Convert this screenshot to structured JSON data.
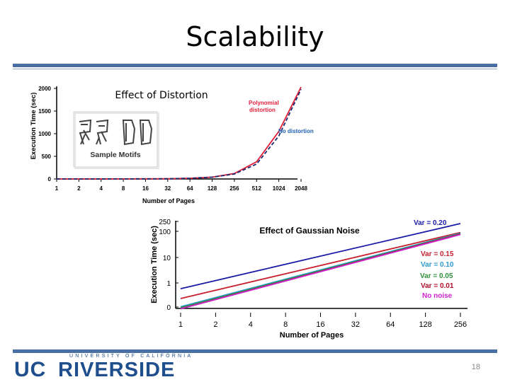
{
  "slide": {
    "title": "Scalability",
    "page_number": "18",
    "logo": {
      "uc": "UC",
      "riverside": "RIVERSIDE",
      "university": "UNIVERSITY OF CALIFORNIA"
    }
  },
  "colors": {
    "accent": "#4a6fa3",
    "logo": "#1f4e8c"
  },
  "chart_data": [
    {
      "type": "line",
      "title": "Effect of Distortion",
      "xlabel": "Number of Pages",
      "ylabel": "Execution Time (sec)",
      "x": [
        1,
        2,
        4,
        8,
        16,
        32,
        64,
        128,
        256,
        512,
        1024,
        2048
      ],
      "x_ticks": [
        "1",
        "2",
        "4",
        "8",
        "16",
        "32",
        "64",
        "128",
        "256",
        "512",
        "1024",
        "2048"
      ],
      "y_ticks": [
        "0",
        "500",
        "1000",
        "1500",
        "2000"
      ],
      "ylim": [
        0,
        2000
      ],
      "x_scale": "log2",
      "inset_label": "Sample Motifs",
      "series": [
        {
          "name": "Polynomial distortion",
          "color": "#e0203a",
          "dash": false,
          "values": [
            0,
            0,
            1,
            2,
            3,
            5,
            15,
            40,
            120,
            380,
            1050,
            2030
          ]
        },
        {
          "name": "No distortion",
          "color": "#1a2a6e",
          "dash": true,
          "values": [
            0,
            0,
            1,
            2,
            3,
            5,
            15,
            40,
            110,
            330,
            950,
            1980
          ]
        }
      ],
      "legend_lines": [
        {
          "name": "Polynomial",
          "color": "#e0203a"
        },
        {
          "name": "distortion",
          "color": "#e0203a"
        },
        {
          "name": "No distortion",
          "color": "#1f5fb0"
        }
      ]
    },
    {
      "type": "line",
      "title": "Effect of Gaussian Noise",
      "xlabel": "Number of Pages",
      "ylabel": "Execution Time (sec)",
      "x": [
        1,
        2,
        4,
        8,
        16,
        32,
        64,
        128,
        256
      ],
      "x_ticks": [
        "1",
        "2",
        "4",
        "8",
        "16",
        "32",
        "64",
        "128",
        "256"
      ],
      "y_ticks": [
        "0",
        "1",
        "10",
        "100",
        "250"
      ],
      "x_scale": "log2",
      "y_scale": "log",
      "series": [
        {
          "name": "Var = 0.20",
          "color": "#1a1aa8",
          "start": 0.6,
          "end": 200
        },
        {
          "name": "Var = 0.15",
          "color": "#c81e2e",
          "start": 0.25,
          "end": 90
        },
        {
          "name": "Var = 0.10",
          "color": "#2a9ad0",
          "start": 0.12,
          "end": 85
        },
        {
          "name": "Var = 0.05",
          "color": "#2f8f3a",
          "start": 0.11,
          "end": 80
        },
        {
          "name": "Var = 0.01",
          "color": "#b0102a",
          "start": 0.1,
          "end": 78
        },
        {
          "name": "No noise",
          "color": "#cc22cc",
          "start": 0.1,
          "end": 75
        }
      ]
    }
  ]
}
